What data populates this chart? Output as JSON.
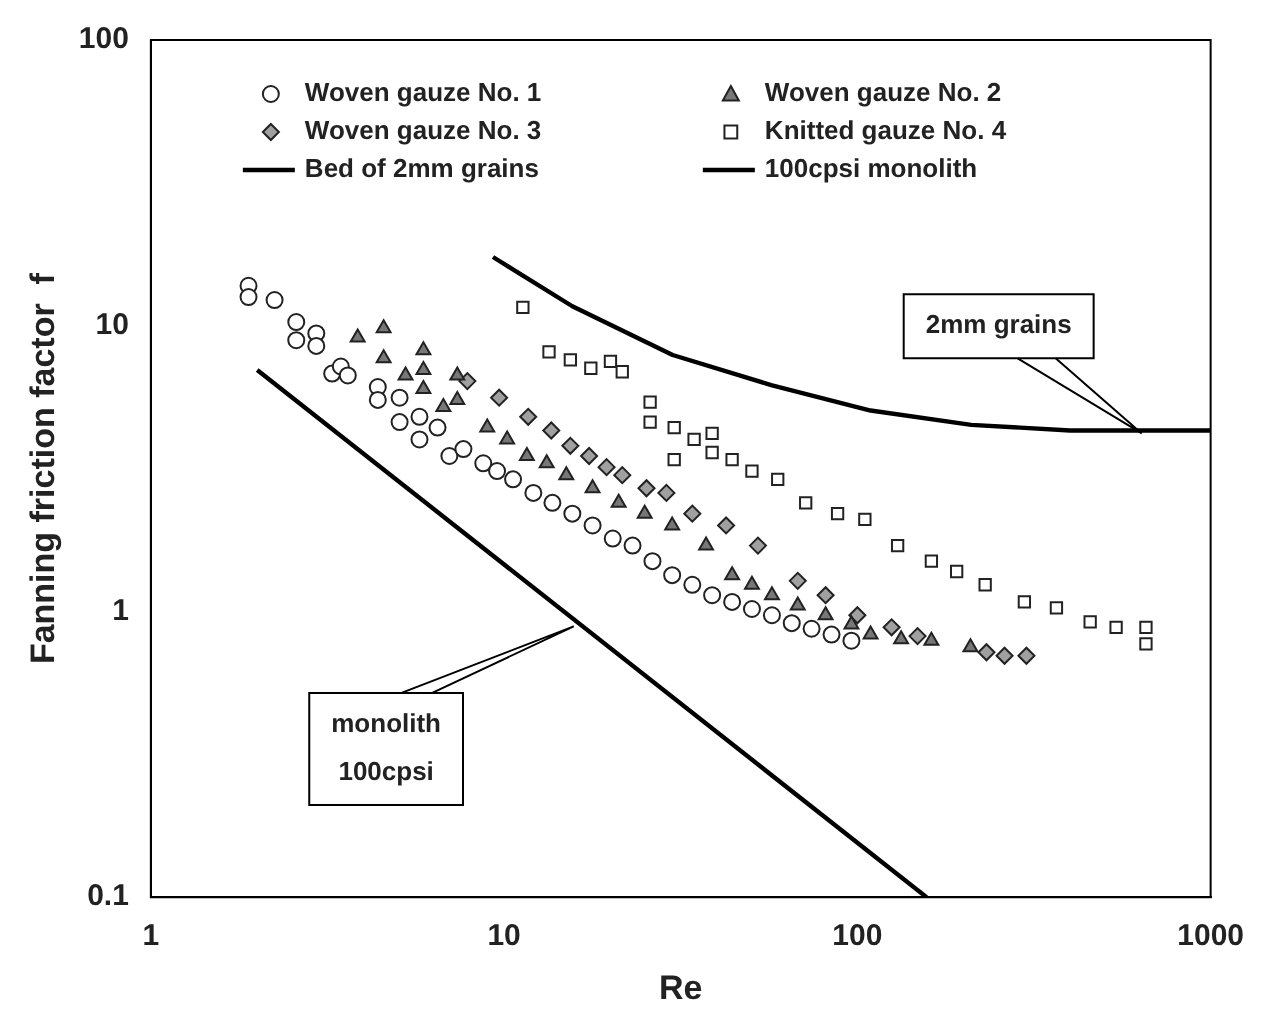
{
  "chart_data": {
    "type": "scatter",
    "xlabel": "Re",
    "ylabel": "Fanning friction factor  f",
    "log": "xy",
    "xlim": [
      1,
      1000
    ],
    "xticks": [
      1,
      10,
      100,
      1000
    ],
    "ylim": [
      0.1,
      100
    ],
    "yticks": [
      0.1,
      1,
      10,
      100
    ],
    "grid": false,
    "legend": "top",
    "line_style": "solid",
    "series": [
      {
        "name": "Woven gauze No. 1",
        "marker": "circle",
        "color": "#ffffff",
        "x": [
          1.89,
          1.89,
          2.24,
          2.58,
          2.58,
          2.94,
          2.94,
          3.26,
          3.45,
          3.61,
          4.39,
          4.39,
          5.06,
          5.06,
          5.76,
          5.76,
          6.48,
          7.0,
          7.67,
          8.73,
          9.55,
          10.6,
          12.1,
          13.7,
          15.6,
          17.8,
          20.3,
          23.1,
          26.3,
          29.9,
          34.1,
          38.8,
          44.2,
          50.3,
          57.3,
          65.2,
          74.2,
          84.5,
          96.2
        ],
        "values": [
          13.8,
          12.6,
          12.3,
          10.3,
          8.9,
          9.4,
          8.5,
          6.8,
          7.2,
          6.7,
          6.1,
          5.5,
          5.6,
          4.6,
          4.8,
          4.0,
          4.4,
          3.5,
          3.7,
          3.3,
          3.1,
          2.9,
          2.6,
          2.4,
          2.2,
          2.0,
          1.8,
          1.7,
          1.5,
          1.34,
          1.24,
          1.14,
          1.08,
          1.02,
          0.97,
          0.91,
          0.87,
          0.83,
          0.79
        ]
      },
      {
        "name": "Woven gauze No. 2",
        "marker": "triangle",
        "color": "#777777",
        "x": [
          3.85,
          4.56,
          4.56,
          5.26,
          5.91,
          5.91,
          5.91,
          6.73,
          7.37,
          7.37,
          8.96,
          10.2,
          11.6,
          13.2,
          15.0,
          17.8,
          21.1,
          25.0,
          29.9,
          37.3,
          44.2,
          50.3,
          57.3,
          67.8,
          81.3,
          96.2,
          109,
          133,
          162,
          209
        ],
        "values": [
          9.1,
          9.8,
          7.7,
          6.7,
          8.2,
          7.0,
          6.0,
          5.2,
          6.7,
          5.5,
          4.4,
          4.0,
          3.5,
          3.3,
          3.0,
          2.7,
          2.4,
          2.2,
          2.0,
          1.7,
          1.34,
          1.24,
          1.14,
          1.05,
          0.97,
          0.9,
          0.83,
          0.8,
          0.79,
          0.75
        ]
      },
      {
        "name": "Woven gauze No. 3",
        "marker": "diamond",
        "color": "#a0a0a0",
        "x": [
          7.87,
          9.68,
          11.7,
          13.6,
          15.4,
          17.4,
          19.5,
          21.6,
          25.3,
          28.8,
          34.1,
          42.5,
          52.3,
          67.8,
          81.3,
          100,
          125,
          148,
          232,
          261,
          301
        ],
        "values": [
          6.4,
          5.6,
          4.8,
          4.3,
          3.8,
          3.5,
          3.2,
          3.0,
          2.7,
          2.6,
          2.2,
          2.0,
          1.7,
          1.28,
          1.14,
          0.97,
          0.88,
          0.82,
          0.72,
          0.7,
          0.7
        ]
      },
      {
        "name": "Knitted gauze No. 4",
        "marker": "square",
        "color": "#ffffff",
        "x": [
          11.3,
          13.4,
          15.4,
          17.6,
          20.0,
          21.6,
          25.9,
          25.9,
          30.3,
          30.3,
          34.5,
          38.8,
          38.8,
          44.2,
          50.3,
          59.5,
          71.4,
          87.9,
          105,
          130,
          162,
          191,
          230,
          297,
          366,
          456,
          540,
          656,
          656
        ],
        "values": [
          11.6,
          8.1,
          7.6,
          7.1,
          7.5,
          6.9,
          5.4,
          4.6,
          4.4,
          3.4,
          4.0,
          4.2,
          3.6,
          3.4,
          3.1,
          2.9,
          2.4,
          2.2,
          2.1,
          1.7,
          1.5,
          1.38,
          1.24,
          1.08,
          1.03,
          0.92,
          0.88,
          0.88,
          0.77
        ]
      },
      {
        "name": "Bed of 2mm grains",
        "type": "line",
        "marker": "none",
        "color": "#000000",
        "x": [
          9.3,
          15.6,
          30,
          57,
          109,
          210,
          400,
          1000
        ],
        "values": [
          17.4,
          11.7,
          7.9,
          6.2,
          5.05,
          4.5,
          4.3,
          4.3
        ]
      },
      {
        "name": "100cpsi monolith",
        "type": "line",
        "marker": "none",
        "color": "#000000",
        "x": [
          2,
          157
        ],
        "values": [
          7.0,
          0.1
        ]
      }
    ],
    "annotations": [
      "2mm grains",
      "monolith 100cpsi"
    ]
  }
}
